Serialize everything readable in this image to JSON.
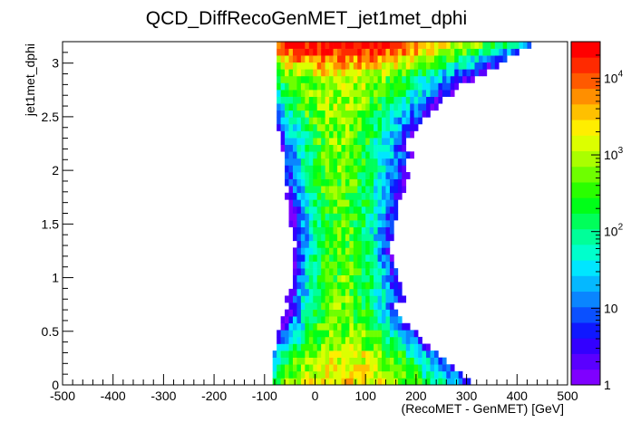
{
  "chart_data": {
    "type": "heatmap",
    "title": "QCD_DiffRecoGenMET_jet1met_dphi",
    "xlabel": "(RecoMET - GenMET)  [GeV]",
    "ylabel": "jet1met_dphi",
    "xlim": [
      -500,
      500
    ],
    "ylim": [
      0,
      3.2
    ],
    "x_ticks": [
      "-500",
      "-400",
      "-300",
      "-200",
      "-100",
      "0",
      "100",
      "200",
      "300",
      "400",
      "500"
    ],
    "y_ticks": [
      "0",
      "0.5",
      "1",
      "1.5",
      "2",
      "2.5",
      "3"
    ],
    "z_scale": "log",
    "zlim": [
      1,
      30000
    ],
    "z_ticks": [
      "1",
      "10",
      "10^2",
      "10^3",
      "10^4"
    ],
    "palette": [
      "#7f00ff",
      "#5a00ff",
      "#3300ff",
      "#0f18ff",
      "#0a50ff",
      "#0a85ff",
      "#05b8ff",
      "#00e6ff",
      "#00ffcc",
      "#00ff99",
      "#00ff5a",
      "#00ff18",
      "#2aff00",
      "#6eff00",
      "#aaff00",
      "#dcff00",
      "#ffee00",
      "#ffc000",
      "#ff8f00",
      "#ff5a00",
      "#ff2a00",
      "#ff0000"
    ],
    "grid": false,
    "bin_width_x": 8,
    "bin_height_y": 0.064,
    "density_description": "Counts concentrated between roughly -60 and 260 GeV; peak (~2e4) near x=50 at dphi~3.1 and a broad core near x=40-80 at low dphi; narrower waist around dphi 1-1.5; wider spread toward dphi=0 and dphi=3.1."
  }
}
